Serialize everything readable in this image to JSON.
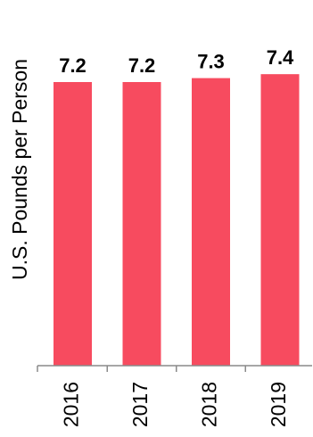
{
  "chart_data": {
    "type": "bar",
    "title": "",
    "xlabel": "",
    "ylabel": "U.S. Pounds per Person",
    "categories": [
      "2016",
      "2017",
      "2018",
      "2019"
    ],
    "values": [
      7.2,
      7.2,
      7.3,
      7.4
    ],
    "value_labels": [
      "7.2",
      "7.2",
      "7.3",
      "7.4"
    ],
    "bar_color": "#f74b5f",
    "axis_color": "#8a8a8a",
    "grid": false,
    "legend": "none"
  }
}
